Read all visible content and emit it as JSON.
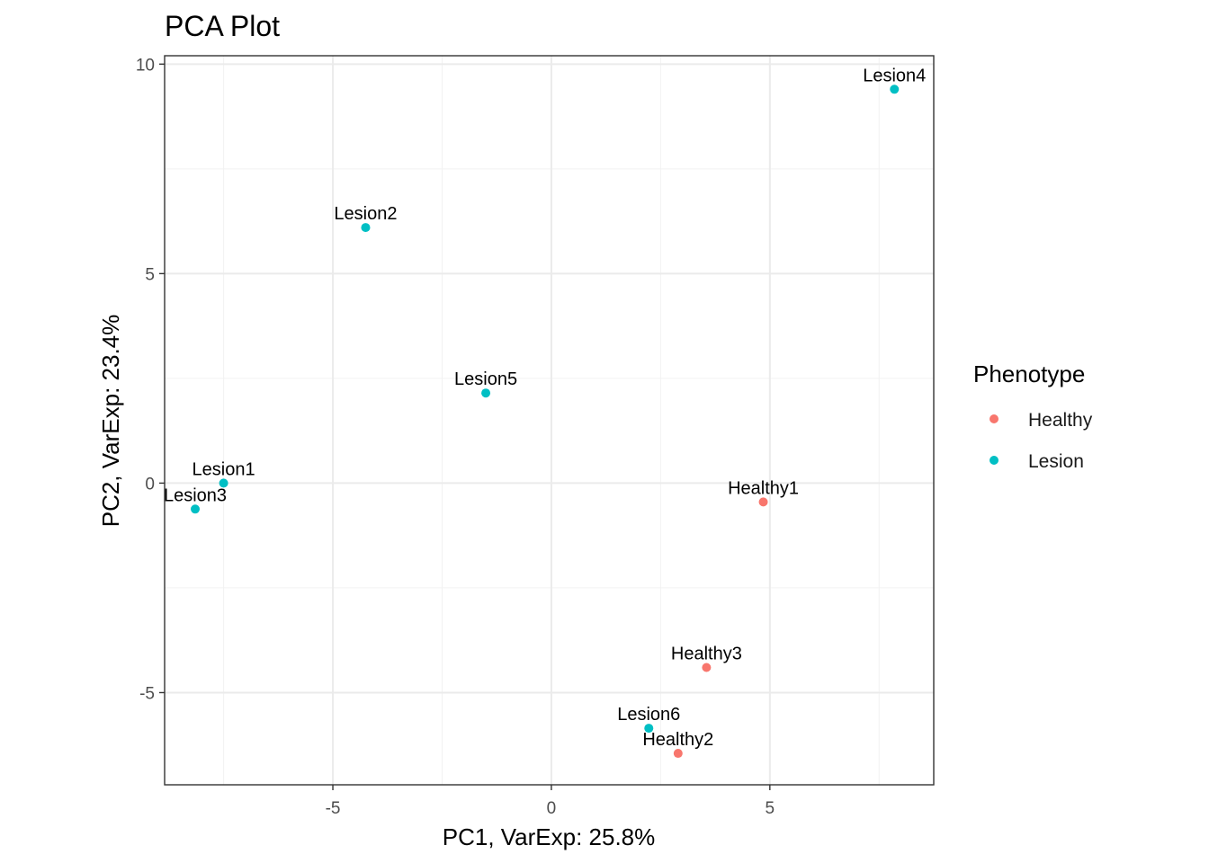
{
  "chart_data": {
    "type": "scatter",
    "title": "PCA Plot",
    "xlabel": "PC1, VarExp: 25.8%",
    "ylabel": "PC2, VarExp: 23.4%",
    "xlim": [
      -8.85,
      8.75
    ],
    "ylim": [
      -7.2,
      10.2
    ],
    "xticks": [
      -5,
      0,
      5
    ],
    "xtick_labels": [
      "-5",
      "0",
      "5"
    ],
    "yticks": [
      -5,
      0,
      5,
      10
    ],
    "ytick_labels": [
      "-5",
      "0",
      "5",
      "10"
    ],
    "grid": true,
    "legend": {
      "title": "Phenotype",
      "position": "right",
      "entries": [
        {
          "name": "Healthy",
          "color": "#F8766D"
        },
        {
          "name": "Lesion",
          "color": "#00BFC4"
        }
      ]
    },
    "points": [
      {
        "label": "Lesion1",
        "group": "Lesion",
        "x": -7.5,
        "y": 0.0
      },
      {
        "label": "Lesion2",
        "group": "Lesion",
        "x": -4.25,
        "y": 6.1
      },
      {
        "label": "Lesion3",
        "group": "Lesion",
        "x": -8.15,
        "y": -0.62
      },
      {
        "label": "Lesion4",
        "group": "Lesion",
        "x": 7.85,
        "y": 9.4
      },
      {
        "label": "Lesion5",
        "group": "Lesion",
        "x": -1.5,
        "y": 2.15
      },
      {
        "label": "Lesion6",
        "group": "Lesion",
        "x": 2.23,
        "y": -5.85
      },
      {
        "label": "Healthy1",
        "group": "Healthy",
        "x": 4.85,
        "y": -0.45
      },
      {
        "label": "Healthy2",
        "group": "Healthy",
        "x": 2.9,
        "y": -6.45
      },
      {
        "label": "Healthy3",
        "group": "Healthy",
        "x": 3.55,
        "y": -4.4
      }
    ]
  }
}
